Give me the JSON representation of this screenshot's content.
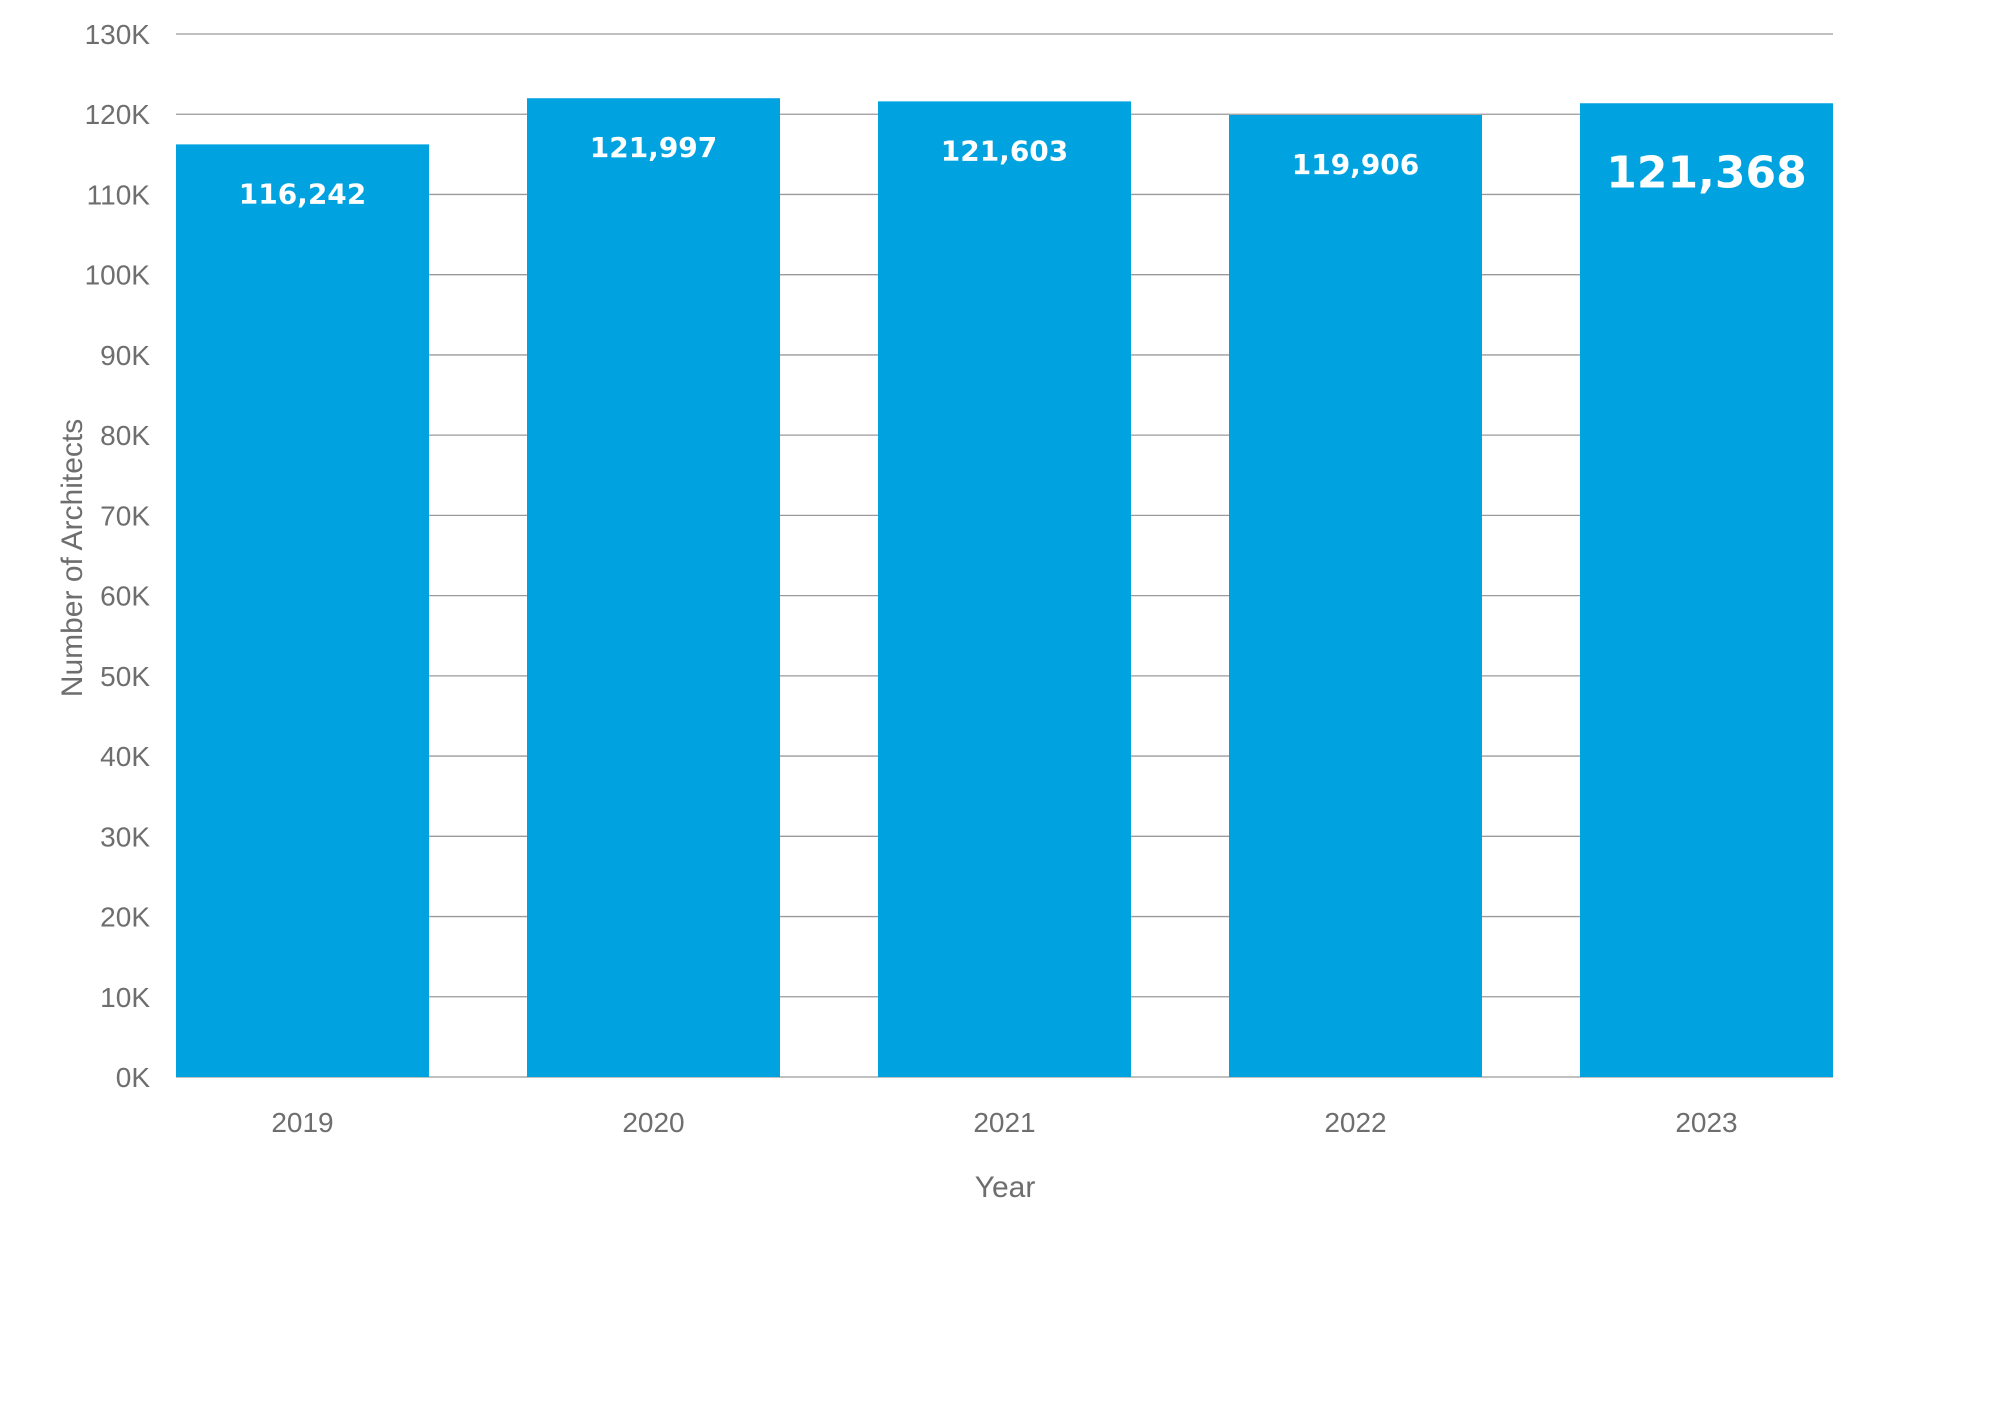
{
  "chart_data": {
    "type": "bar",
    "categories": [
      "2019",
      "2020",
      "2021",
      "2022",
      "2023"
    ],
    "values": [
      116242,
      121997,
      121603,
      119906,
      121368
    ],
    "data_labels": [
      "116,242",
      "121,997",
      "121,603",
      "119,906",
      "121,368"
    ],
    "emphasized_category": "2023",
    "title": "",
    "xlabel": "Year",
    "ylabel": "Number of Architects",
    "ylim": [
      0,
      130000
    ],
    "yticks": [
      0,
      10000,
      20000,
      30000,
      40000,
      50000,
      60000,
      70000,
      80000,
      90000,
      100000,
      110000,
      120000,
      130000
    ],
    "ytick_labels": [
      "0K",
      "10K",
      "20K",
      "30K",
      "40K",
      "50K",
      "60K",
      "70K",
      "80K",
      "90K",
      "100K",
      "110K",
      "120K",
      "130K"
    ],
    "grid": true,
    "legend": "none",
    "colors": {
      "bar": "#00a3e0",
      "grid": "#9a9a9a",
      "text": "#6e6e6e",
      "label": "#ffffff"
    }
  }
}
